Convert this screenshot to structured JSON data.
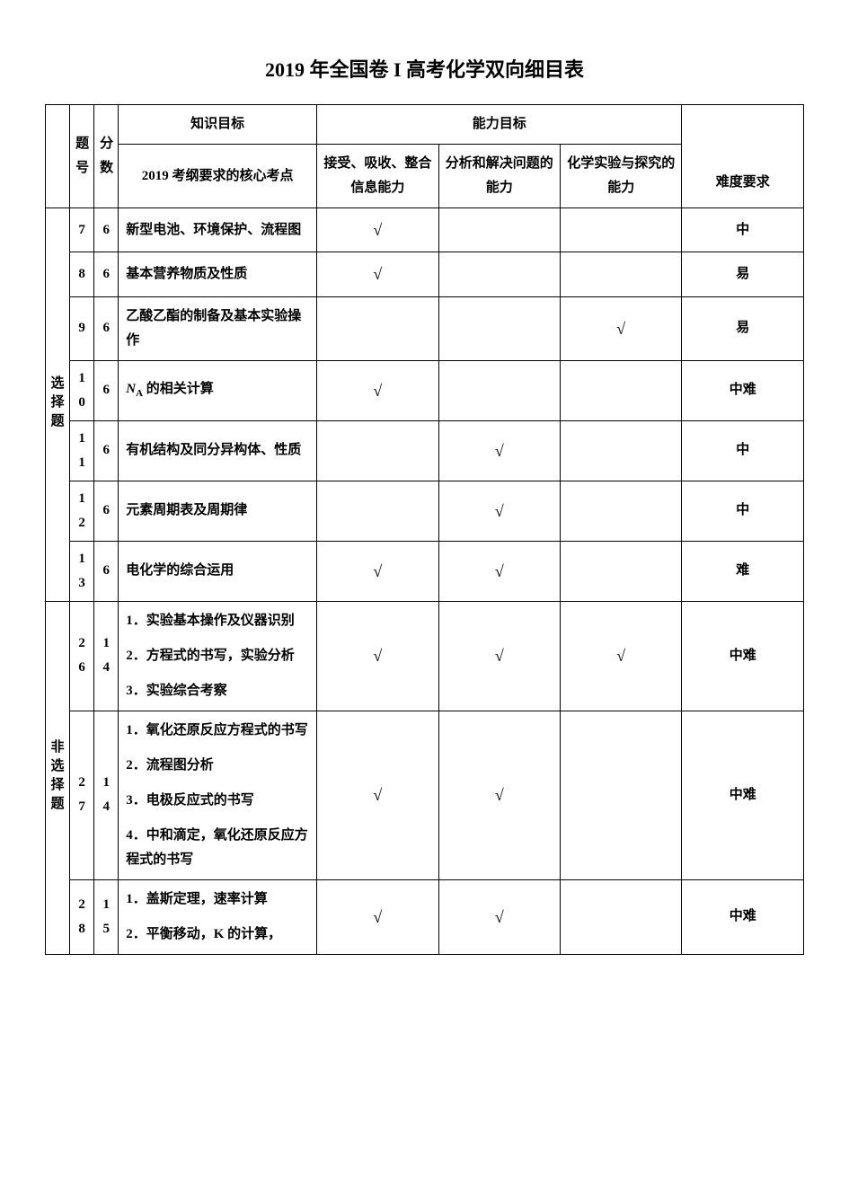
{
  "title": "2019 年全国卷 I 高考化学双向细目表",
  "headers": {
    "qnum": "题号",
    "score": "分数",
    "knowledge": "知识目标",
    "ability": "能力目标",
    "kakaopoint": "2019 考纲要求的核心考点",
    "ability1": "接受、吸收、整合信息能力",
    "ability2": "分析和解决问题的能力",
    "ability3": "化学实验与探究的能力",
    "difficulty": "难度要求"
  },
  "sections": [
    {
      "label": "选择题",
      "rows": [
        {
          "q": "7",
          "s": "6",
          "k": "新型电池、环境保护、流程图",
          "a1": "√",
          "a2": "",
          "a3": "",
          "d": "中"
        },
        {
          "q": "8",
          "s": "6",
          "k": "基本营养物质及性质",
          "a1": "√",
          "a2": "",
          "a3": "",
          "d": "易"
        },
        {
          "q": "9",
          "s": "6",
          "k": "乙酸乙酯的制备及基本实验操作",
          "a1": "",
          "a2": "",
          "a3": "√",
          "d": "易"
        },
        {
          "q": "10",
          "s": "6",
          "k": "NA 的相关计算",
          "a1": "√",
          "a2": "",
          "a3": "",
          "d": "中难",
          "na": true
        },
        {
          "q": "11",
          "s": "6",
          "k": "有机结构及同分异构体、性质",
          "a1": "",
          "a2": "√",
          "a3": "",
          "d": "中"
        },
        {
          "q": "12",
          "s": "6",
          "k": "元素周期表及周期律",
          "a1": "",
          "a2": "√",
          "a3": "",
          "d": "中"
        },
        {
          "q": "13",
          "s": "6",
          "k": "电化学的综合运用",
          "a1": "√",
          "a2": "√",
          "a3": "",
          "d": "难"
        }
      ]
    },
    {
      "label": "非选择题",
      "rows": [
        {
          "q": "26",
          "s": "14",
          "klist": [
            "实验基本操作及仪器识别",
            "方程式的书写，实验分析",
            "实验综合考察"
          ],
          "a1": "√",
          "a2": "√",
          "a3": "√",
          "d": "中难"
        },
        {
          "q": "27",
          "s": "14",
          "klist": [
            "氧化还原反应方程式的书写",
            "流程图分析",
            "电极反应式的书写",
            "中和滴定，氧化还原反应方程式的书写"
          ],
          "a1": "√",
          "a2": "√",
          "a3": "",
          "d": "中难"
        },
        {
          "q": "28",
          "s": "15",
          "klist": [
            "盖斯定理，速率计算",
            "平衡移动，K 的计算，"
          ],
          "a1": "√",
          "a2": "√",
          "a3": "",
          "d": "中难"
        }
      ]
    }
  ],
  "colwidths": {
    "section": 24,
    "qnum": 24,
    "score": 24,
    "knowledge": 208,
    "ability": 128,
    "diff": 120
  }
}
